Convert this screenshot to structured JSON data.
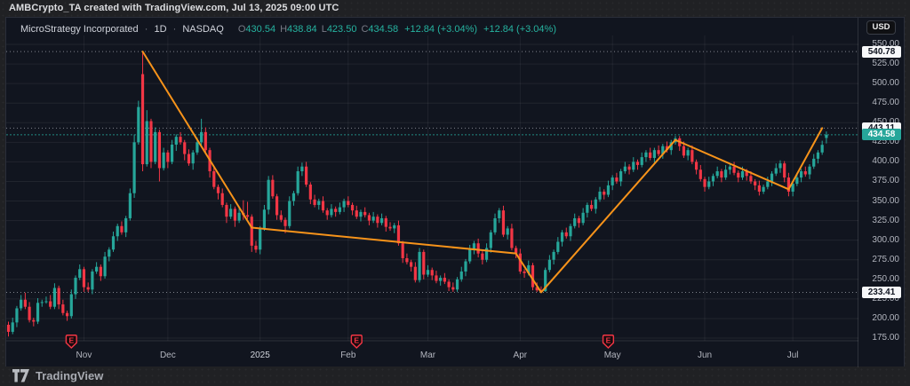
{
  "top_bar": {
    "attribution": "AMBCrypto_TA created with TradingView.com, Jul 13, 2025 09:00 UTC"
  },
  "symbol_row": {
    "title": "MicroStrategy Incorporated",
    "separator": "·",
    "interval": "1D",
    "exchange": "NASDAQ",
    "ohlc": [
      {
        "label": "O",
        "value": "430.54"
      },
      {
        "label": "H",
        "value": "438.84"
      },
      {
        "label": "L",
        "value": "423.50"
      },
      {
        "label": "C",
        "value": "434.58"
      }
    ],
    "changes": [
      "+12.84 (+3.04%)",
      "+12.84 (+3.04%)"
    ]
  },
  "price_axis": {
    "currency_button": "USD",
    "ticks": [
      550,
      525,
      500,
      475,
      450,
      425,
      400,
      375,
      350,
      325,
      300,
      275,
      250,
      225,
      200,
      175
    ],
    "markers": [
      {
        "price": 540.78,
        "label": "540.78",
        "style": "white"
      },
      {
        "price": 443.11,
        "label": "443.11",
        "style": "white"
      },
      {
        "price": 434.58,
        "label": "434.58",
        "style": "last"
      },
      {
        "price": 233.41,
        "label": "233.41",
        "style": "white"
      }
    ]
  },
  "time_axis": {
    "months": [
      {
        "label": "Nov",
        "index": 18
      },
      {
        "label": "Dec",
        "index": 38
      },
      {
        "label": "2025",
        "index": 60
      },
      {
        "label": "Feb",
        "index": 81
      },
      {
        "label": "Mar",
        "index": 100
      },
      {
        "label": "Apr",
        "index": 122
      },
      {
        "label": "May",
        "index": 144
      },
      {
        "label": "Jun",
        "index": 166
      },
      {
        "label": "Jul",
        "index": 187
      }
    ]
  },
  "branding": {
    "logo_text": "TradingView"
  },
  "colors": {
    "up": "#26a69a",
    "down": "#f23645",
    "trend": "#f7931a",
    "grid": "rgba(255,255,255,0.07)",
    "axis_text": "#b2b5be",
    "earnings": "#f23645",
    "pane_bg": "#11151f"
  },
  "chart_data": {
    "type": "candlestick",
    "title": "MicroStrategy Incorporated",
    "interval": "1D",
    "exchange": "NASDAQ",
    "currency": "USD",
    "x_range": "Late Oct 2024 - Jul 13 2025 (daily)",
    "ylim": [
      175,
      550
    ],
    "grid": true,
    "last_ohlc": {
      "open": 430.54,
      "high": 438.84,
      "low": 423.5,
      "close": 434.58,
      "change": "+12.84 (+3.04%)"
    },
    "marked_prices": {
      "cycle_high": 540.78,
      "cycle_low": 233.41,
      "trend_target": 443.11,
      "last": 434.58
    },
    "earnings_marker_indices": [
      15,
      83,
      143
    ],
    "trend_line": {
      "color": "#f7931a",
      "points": [
        [
          32,
          540.78
        ],
        [
          58,
          316
        ],
        [
          121,
          283
        ],
        [
          127,
          233.41
        ],
        [
          159,
          428
        ],
        [
          186,
          365
        ],
        [
          194,
          443.11
        ]
      ]
    },
    "candles": [
      [
        192,
        196,
        177,
        183
      ],
      [
        183,
        201,
        180,
        195
      ],
      [
        195,
        216,
        189,
        213
      ],
      [
        213,
        230,
        210,
        224
      ],
      [
        224,
        233,
        212,
        215
      ],
      [
        215,
        221,
        195,
        198
      ],
      [
        198,
        201,
        190,
        196
      ],
      [
        196,
        226,
        193,
        220
      ],
      [
        220,
        224,
        215,
        221
      ],
      [
        221,
        228,
        219,
        222
      ],
      [
        222,
        230,
        212,
        215
      ],
      [
        215,
        245,
        212,
        239
      ],
      [
        239,
        242,
        212,
        218
      ],
      [
        218,
        224,
        204,
        207
      ],
      [
        207,
        210,
        197,
        203
      ],
      [
        203,
        237,
        200,
        231
      ],
      [
        231,
        255,
        225,
        252
      ],
      [
        252,
        269,
        249,
        263
      ],
      [
        263,
        266,
        234,
        240
      ],
      [
        240,
        246,
        234,
        237
      ],
      [
        237,
        263,
        231,
        260
      ],
      [
        260,
        272,
        257,
        266
      ],
      [
        266,
        269,
        248,
        254
      ],
      [
        254,
        285,
        251,
        279
      ],
      [
        279,
        291,
        273,
        288
      ],
      [
        288,
        311,
        285,
        305
      ],
      [
        305,
        321,
        299,
        318
      ],
      [
        318,
        324,
        307,
        310
      ],
      [
        310,
        331,
        304,
        328
      ],
      [
        328,
        366,
        325,
        360
      ],
      [
        360,
        435,
        354,
        425
      ],
      [
        425,
        478,
        422,
        470
      ],
      [
        512,
        540.78,
        388,
        397
      ],
      [
        397,
        466,
        394,
        452
      ],
      [
        452,
        455,
        392,
        400
      ],
      [
        400,
        444,
        397,
        438
      ],
      [
        438,
        441,
        375,
        392
      ],
      [
        392,
        418,
        389,
        412
      ],
      [
        412,
        415,
        392,
        400
      ],
      [
        400,
        428,
        397,
        422
      ],
      [
        422,
        435,
        414,
        432
      ],
      [
        432,
        438,
        422,
        425
      ],
      [
        425,
        428,
        402,
        410
      ],
      [
        410,
        416,
        395,
        398
      ],
      [
        398,
        415,
        390,
        412
      ],
      [
        412,
        431,
        409,
        425
      ],
      [
        425,
        455,
        419,
        438
      ],
      [
        438,
        444,
        412,
        415
      ],
      [
        415,
        418,
        380,
        388
      ],
      [
        388,
        394,
        365,
        368
      ],
      [
        368,
        371,
        352,
        360
      ],
      [
        360,
        366,
        342,
        345
      ],
      [
        345,
        348,
        322,
        330
      ],
      [
        330,
        346,
        327,
        340
      ],
      [
        340,
        343,
        317,
        325
      ],
      [
        325,
        341,
        322,
        335
      ],
      [
        335,
        351,
        326,
        332
      ],
      [
        332,
        349,
        327,
        330
      ],
      [
        330,
        333,
        285,
        293
      ],
      [
        293,
        299,
        284,
        288
      ],
      [
        288,
        318,
        282,
        315
      ],
      [
        315,
        345,
        312,
        339
      ],
      [
        339,
        382,
        333,
        377
      ],
      [
        377,
        383,
        353,
        356
      ],
      [
        356,
        359,
        326,
        332
      ],
      [
        332,
        338,
        323,
        326
      ],
      [
        326,
        329,
        309,
        318
      ],
      [
        318,
        356,
        315,
        350
      ],
      [
        350,
        363,
        344,
        360
      ],
      [
        360,
        394,
        357,
        388
      ],
      [
        388,
        399,
        382,
        394
      ],
      [
        394,
        400,
        368,
        371
      ],
      [
        371,
        374,
        346,
        352
      ],
      [
        352,
        358,
        342,
        345
      ],
      [
        345,
        353,
        339,
        350
      ],
      [
        350,
        356,
        335,
        338
      ],
      [
        338,
        341,
        326,
        332
      ],
      [
        332,
        346,
        329,
        340
      ],
      [
        340,
        343,
        330,
        336
      ],
      [
        336,
        348,
        333,
        342
      ],
      [
        342,
        353,
        336,
        350
      ],
      [
        350,
        356,
        342,
        345
      ],
      [
        345,
        348,
        332,
        338
      ],
      [
        338,
        344,
        327,
        330
      ],
      [
        330,
        339,
        324,
        336
      ],
      [
        336,
        342,
        329,
        332
      ],
      [
        332,
        335,
        319,
        325
      ],
      [
        325,
        336,
        322,
        330
      ],
      [
        330,
        333,
        316,
        322
      ],
      [
        322,
        334,
        319,
        328
      ],
      [
        328,
        331,
        311,
        317
      ],
      [
        317,
        323,
        312,
        315
      ],
      [
        315,
        322,
        309,
        319
      ],
      [
        319,
        325,
        293,
        296
      ],
      [
        296,
        299,
        271,
        277
      ],
      [
        277,
        283,
        269,
        272
      ],
      [
        272,
        275,
        260,
        266
      ],
      [
        266,
        272,
        246,
        249
      ],
      [
        249,
        290,
        246,
        285
      ],
      [
        285,
        288,
        250,
        256
      ],
      [
        256,
        268,
        253,
        262
      ],
      [
        262,
        265,
        249,
        255
      ],
      [
        255,
        261,
        245,
        248
      ],
      [
        248,
        255,
        242,
        252
      ],
      [
        252,
        258,
        244,
        247
      ],
      [
        247,
        250,
        235,
        240
      ],
      [
        240,
        246,
        234,
        237
      ],
      [
        237,
        253,
        234,
        250
      ],
      [
        250,
        266,
        247,
        260
      ],
      [
        260,
        276,
        254,
        273
      ],
      [
        273,
        294,
        270,
        288
      ],
      [
        288,
        299,
        282,
        296
      ],
      [
        296,
        302,
        278,
        283
      ],
      [
        283,
        286,
        269,
        275
      ],
      [
        275,
        296,
        272,
        290
      ],
      [
        290,
        313,
        284,
        310
      ],
      [
        310,
        334,
        307,
        328
      ],
      [
        328,
        341,
        322,
        338
      ],
      [
        338,
        344,
        304,
        307
      ],
      [
        307,
        318,
        301,
        315
      ],
      [
        315,
        321,
        287,
        290
      ],
      [
        290,
        293,
        277,
        283
      ],
      [
        283,
        289,
        257,
        260
      ],
      [
        260,
        263,
        252,
        258
      ],
      [
        258,
        274,
        255,
        268
      ],
      [
        268,
        271,
        236,
        240
      ],
      [
        240,
        246,
        234,
        236
      ],
      [
        236,
        241,
        233.41,
        235
      ],
      [
        235,
        265,
        234,
        262
      ],
      [
        262,
        281,
        259,
        275
      ],
      [
        275,
        288,
        269,
        285
      ],
      [
        285,
        304,
        282,
        298
      ],
      [
        298,
        313,
        292,
        310
      ],
      [
        310,
        316,
        302,
        305
      ],
      [
        305,
        321,
        299,
        318
      ],
      [
        318,
        334,
        315,
        328
      ],
      [
        328,
        331,
        316,
        322
      ],
      [
        322,
        341,
        319,
        335
      ],
      [
        335,
        348,
        329,
        345
      ],
      [
        345,
        351,
        337,
        340
      ],
      [
        340,
        355,
        334,
        352
      ],
      [
        352,
        368,
        349,
        362
      ],
      [
        362,
        365,
        352,
        358
      ],
      [
        358,
        376,
        355,
        370
      ],
      [
        370,
        383,
        364,
        380
      ],
      [
        380,
        386,
        372,
        375
      ],
      [
        375,
        391,
        369,
        388
      ],
      [
        388,
        400,
        385,
        394
      ],
      [
        394,
        397,
        384,
        390
      ],
      [
        390,
        406,
        387,
        400
      ],
      [
        400,
        403,
        390,
        396
      ],
      [
        396,
        412,
        393,
        406
      ],
      [
        406,
        415,
        400,
        412
      ],
      [
        412,
        418,
        402,
        405
      ],
      [
        405,
        418,
        399,
        415
      ],
      [
        415,
        421,
        407,
        410
      ],
      [
        410,
        423,
        404,
        420
      ],
      [
        420,
        426,
        412,
        415
      ],
      [
        415,
        428,
        409,
        425
      ],
      [
        425,
        433,
        422,
        430
      ],
      [
        430,
        433,
        414,
        420
      ],
      [
        420,
        426,
        405,
        408
      ],
      [
        408,
        418,
        402,
        415
      ],
      [
        415,
        421,
        397,
        400
      ],
      [
        400,
        403,
        384,
        390
      ],
      [
        390,
        396,
        375,
        378
      ],
      [
        378,
        381,
        362,
        368
      ],
      [
        368,
        381,
        365,
        375
      ],
      [
        375,
        385,
        369,
        382
      ],
      [
        382,
        394,
        379,
        388
      ],
      [
        388,
        391,
        374,
        380
      ],
      [
        380,
        396,
        377,
        390
      ],
      [
        390,
        397,
        384,
        394
      ],
      [
        394,
        400,
        383,
        386
      ],
      [
        386,
        389,
        374,
        380
      ],
      [
        380,
        394,
        377,
        388
      ],
      [
        388,
        391,
        376,
        382
      ],
      [
        382,
        388,
        372,
        375
      ],
      [
        375,
        378,
        364,
        370
      ],
      [
        370,
        376,
        357,
        362
      ],
      [
        362,
        371,
        359,
        368
      ],
      [
        368,
        381,
        365,
        375
      ],
      [
        375,
        388,
        369,
        385
      ],
      [
        385,
        398,
        382,
        392
      ],
      [
        392,
        402,
        386,
        398
      ],
      [
        398,
        401,
        374,
        380
      ],
      [
        380,
        386,
        356,
        362
      ],
      [
        362,
        375,
        356,
        372
      ],
      [
        372,
        386,
        369,
        380
      ],
      [
        380,
        391,
        374,
        388
      ],
      [
        388,
        394,
        381,
        384
      ],
      [
        384,
        397,
        378,
        394
      ],
      [
        394,
        410,
        391,
        404
      ],
      [
        404,
        415,
        398,
        412
      ],
      [
        412,
        427,
        409,
        421.74
      ],
      [
        430.54,
        438.84,
        423.5,
        434.58
      ]
    ]
  }
}
